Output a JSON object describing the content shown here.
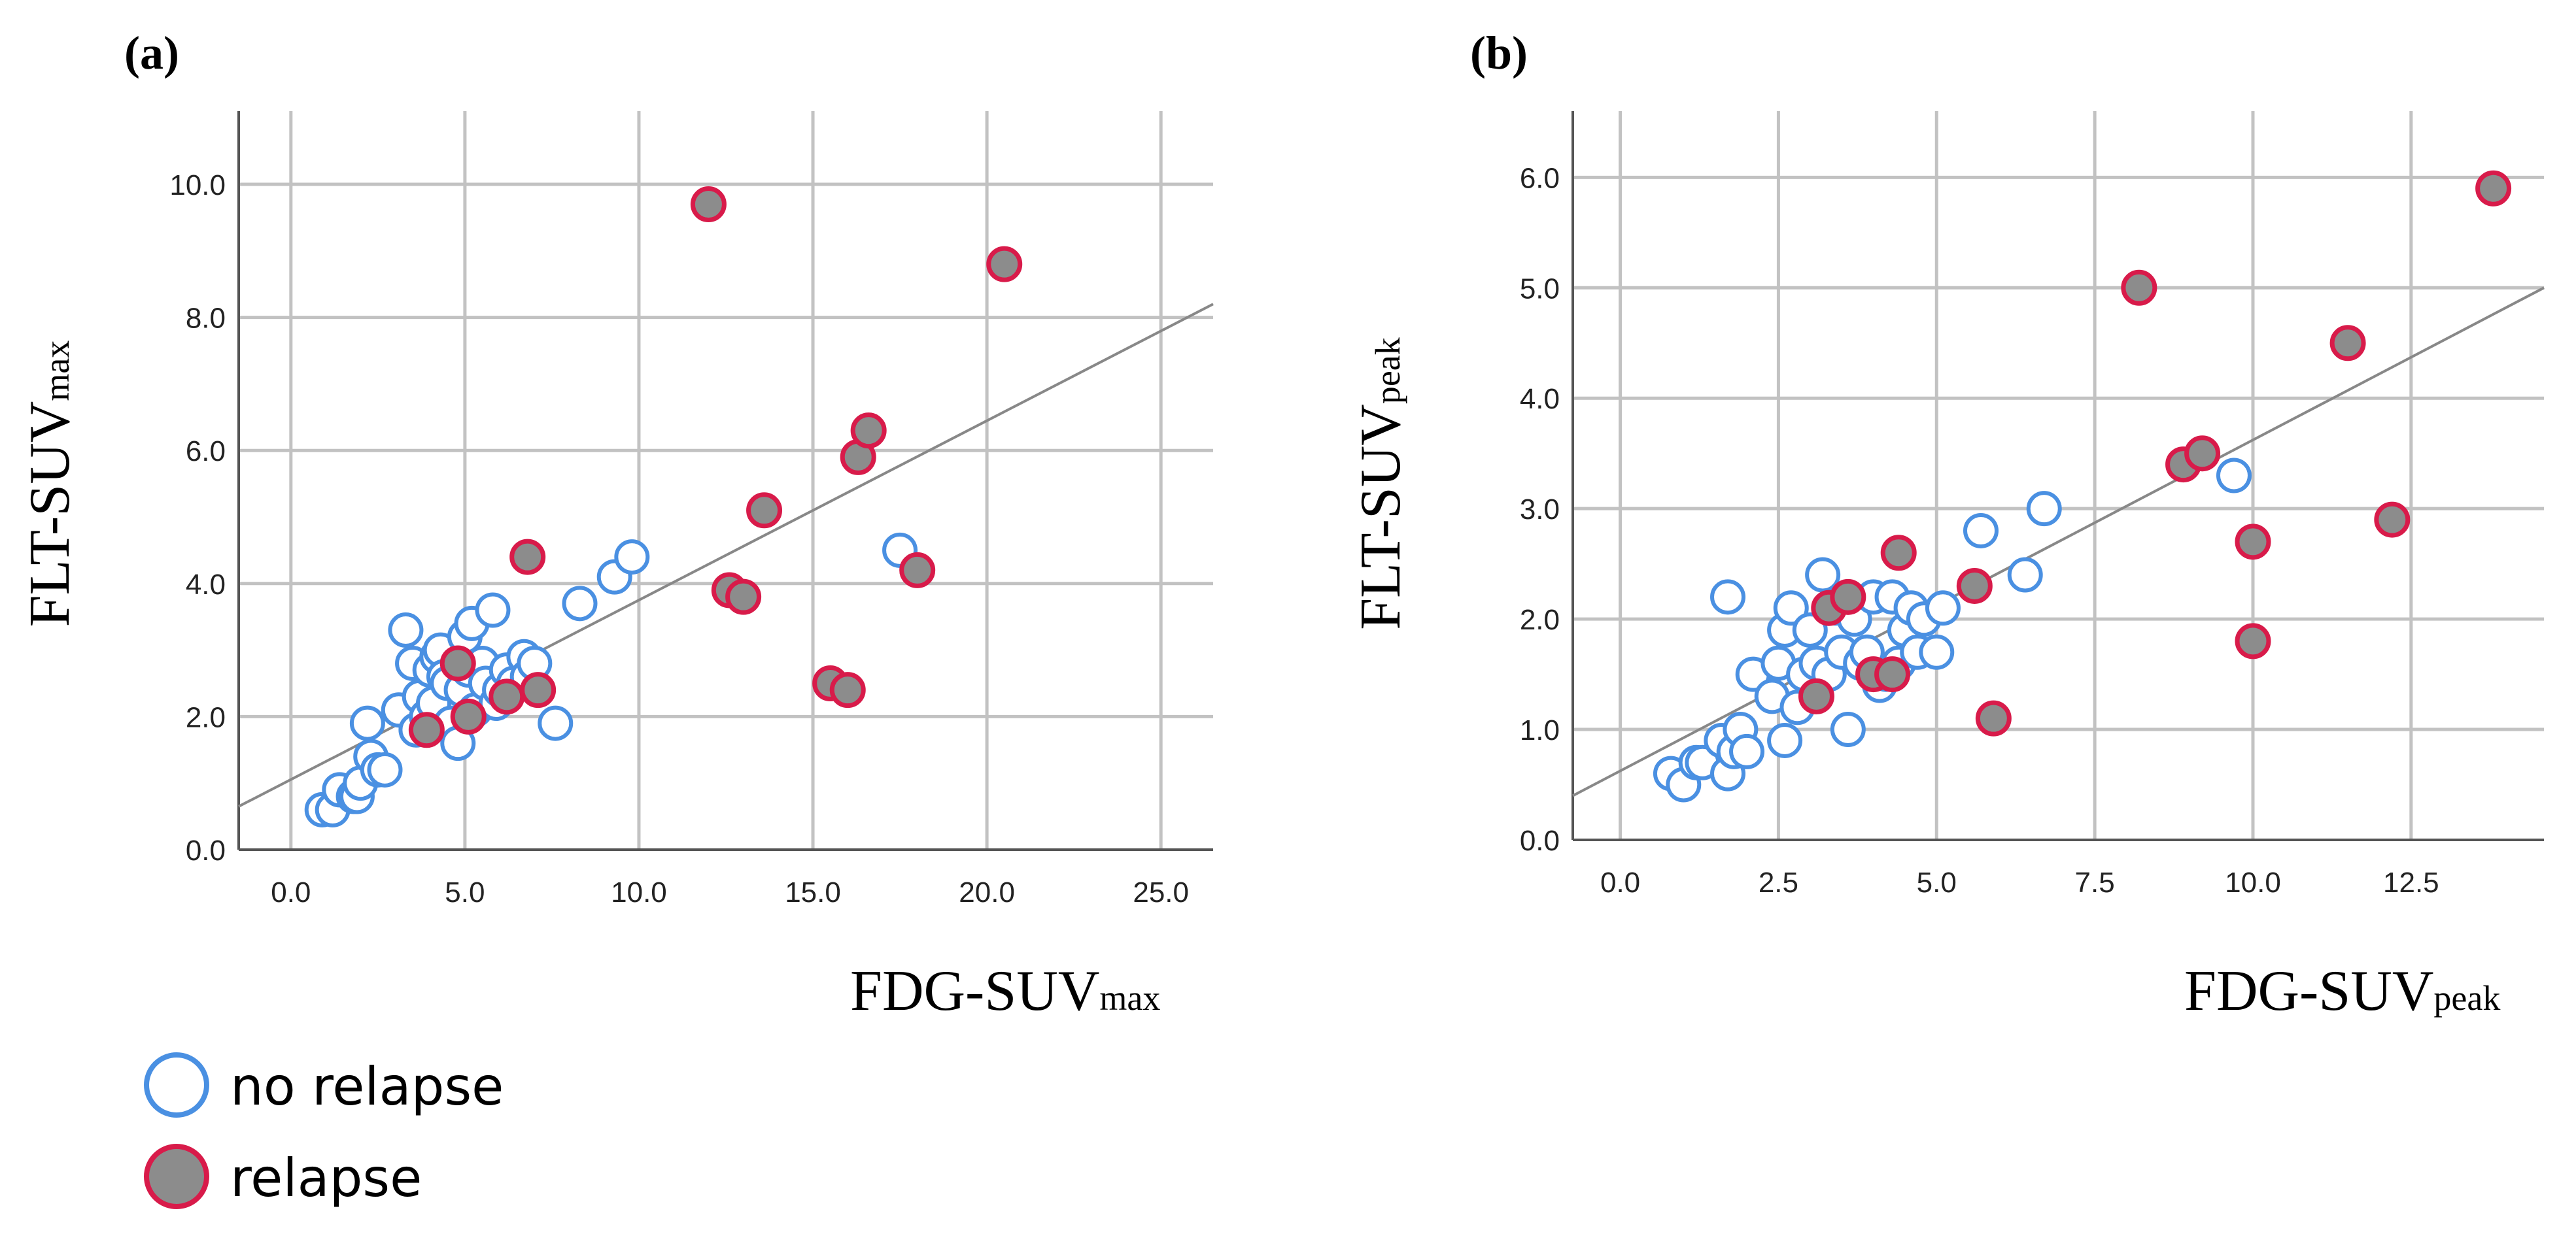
{
  "legend": {
    "no_relapse": "no relapse",
    "relapse": "relapse",
    "colors": {
      "no_relapse_stroke": "#4a90e2",
      "relapse_stroke": "#d81b4a",
      "relapse_fill": "#8c8c8c"
    }
  },
  "chart_data": [
    {
      "type": "scatter",
      "panel_label": "(a)",
      "xlabel_main": "FDG-SUV",
      "xlabel_sub": "max",
      "ylabel_main": "FLT-SUV",
      "ylabel_sub": "max",
      "xlim": [
        -1.5,
        26.5
      ],
      "ylim": [
        0,
        11.1
      ],
      "xticks": [
        0,
        5,
        10,
        15,
        20,
        25
      ],
      "xtick_labels": [
        "0.0",
        "5.0",
        "10.0",
        "15.0",
        "20.0",
        "25.0"
      ],
      "yticks": [
        0,
        2,
        4,
        6,
        8,
        10
      ],
      "ytick_labels": [
        "0.0",
        "2.0",
        "4.0",
        "6.0",
        "8.0",
        "10.0"
      ],
      "grid": true,
      "fit_line": {
        "x": [
          -1.5,
          26.5
        ],
        "y": [
          0.65,
          8.2
        ]
      },
      "series": [
        {
          "name": "no relapse",
          "x": [
            0.9,
            1.2,
            1.4,
            1.8,
            1.9,
            2.0,
            2.2,
            2.3,
            2.5,
            2.7,
            3.1,
            3.3,
            3.5,
            3.6,
            3.7,
            3.9,
            4.0,
            4.1,
            4.2,
            4.3,
            4.4,
            4.5,
            4.6,
            4.8,
            4.9,
            5.0,
            5.1,
            5.2,
            5.3,
            5.5,
            5.6,
            5.8,
            5.9,
            6.0,
            6.2,
            6.4,
            6.7,
            6.8,
            7.0,
            7.6,
            8.3,
            9.3,
            9.8,
            17.5
          ],
          "y": [
            0.6,
            0.6,
            0.9,
            0.8,
            0.8,
            1.0,
            1.9,
            1.4,
            1.2,
            1.2,
            2.1,
            3.3,
            2.8,
            1.8,
            2.3,
            2.0,
            2.7,
            2.2,
            2.9,
            3.0,
            2.6,
            2.5,
            1.9,
            1.6,
            2.4,
            3.2,
            2.7,
            3.4,
            2.1,
            2.8,
            2.5,
            3.6,
            2.2,
            2.4,
            2.7,
            2.5,
            2.9,
            2.6,
            2.8,
            1.9,
            3.7,
            4.1,
            4.4,
            4.5
          ]
        },
        {
          "name": "relapse",
          "x": [
            3.9,
            4.8,
            5.1,
            6.2,
            6.8,
            7.1,
            12.0,
            12.6,
            13.0,
            13.6,
            15.5,
            16.0,
            16.3,
            16.6,
            18.0,
            20.5
          ],
          "y": [
            1.8,
            2.8,
            2.0,
            2.3,
            4.4,
            2.4,
            9.7,
            3.9,
            3.8,
            5.1,
            2.5,
            2.4,
            5.9,
            6.3,
            4.2,
            8.8
          ]
        }
      ]
    },
    {
      "type": "scatter",
      "panel_label": "(b)",
      "xlabel_main": "FDG-SUV",
      "xlabel_sub": "peak",
      "ylabel_main": "FLT-SUV",
      "ylabel_sub": "peak",
      "xlim": [
        -0.75,
        14.6
      ],
      "ylim": [
        0,
        6.6
      ],
      "xticks": [
        0,
        2.5,
        5,
        7.5,
        10,
        12.5
      ],
      "xtick_labels": [
        "0.0",
        "2.5",
        "5.0",
        "7.5",
        "10.0",
        "12.5"
      ],
      "yticks": [
        0,
        1,
        2,
        3,
        4,
        5,
        6
      ],
      "ytick_labels": [
        "0.0",
        "1.0",
        "2.0",
        "3.0",
        "4.0",
        "5.0",
        "6.0"
      ],
      "grid": true,
      "fit_line": {
        "x": [
          -0.75,
          14.6
        ],
        "y": [
          0.4,
          5.0
        ]
      },
      "series": [
        {
          "name": "no relapse",
          "x": [
            0.8,
            1.0,
            1.2,
            1.3,
            1.6,
            1.7,
            1.7,
            1.8,
            1.9,
            2.0,
            2.1,
            2.4,
            2.5,
            2.6,
            2.6,
            2.7,
            2.8,
            2.9,
            3.0,
            3.1,
            3.2,
            3.3,
            3.4,
            3.5,
            3.6,
            3.7,
            3.8,
            3.9,
            4.0,
            4.1,
            4.2,
            4.3,
            4.4,
            4.5,
            4.6,
            4.7,
            4.8,
            5.0,
            5.1,
            5.7,
            6.4,
            6.7,
            9.7
          ],
          "y": [
            0.6,
            0.5,
            0.7,
            0.7,
            0.9,
            2.2,
            0.6,
            0.8,
            1.0,
            0.8,
            1.5,
            1.3,
            1.6,
            1.9,
            0.9,
            2.1,
            1.2,
            1.5,
            1.9,
            1.6,
            2.4,
            1.5,
            2.1,
            1.7,
            1.0,
            2.0,
            1.6,
            1.7,
            2.2,
            1.4,
            1.5,
            2.2,
            1.6,
            1.9,
            2.1,
            1.7,
            2.0,
            1.7,
            2.1,
            2.8,
            2.4,
            3.0,
            3.3
          ]
        },
        {
          "name": "relapse",
          "x": [
            3.1,
            3.3,
            3.6,
            4.0,
            4.3,
            4.4,
            5.6,
            5.9,
            8.2,
            8.9,
            9.2,
            10.0,
            10.0,
            11.5,
            12.2,
            13.8
          ],
          "y": [
            1.3,
            2.1,
            2.2,
            1.5,
            1.5,
            2.6,
            2.3,
            1.1,
            5.0,
            3.4,
            3.5,
            2.7,
            1.8,
            4.5,
            2.9,
            5.9
          ]
        }
      ]
    }
  ]
}
